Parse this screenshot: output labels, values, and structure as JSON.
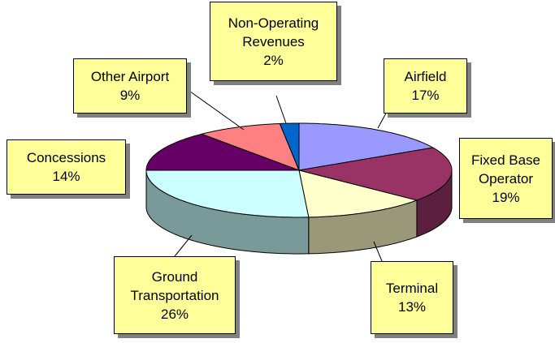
{
  "chart_data": {
    "type": "pie3d",
    "categories": [
      "Airfield",
      "Fixed Base Operator",
      "Terminal",
      "Ground Transportation",
      "Concessions",
      "Other Airport",
      "Non-Operating Revenues"
    ],
    "values": [
      17,
      19,
      13,
      26,
      14,
      9,
      2
    ],
    "value_labels": [
      "17%",
      "19%",
      "13%",
      "26%",
      "14%",
      "9%",
      "2%"
    ],
    "colors": [
      "#9999ff",
      "#993366",
      "#ffffcc",
      "#ccffff",
      "#660066",
      "#ff8080",
      "#0066cc"
    ]
  }
}
